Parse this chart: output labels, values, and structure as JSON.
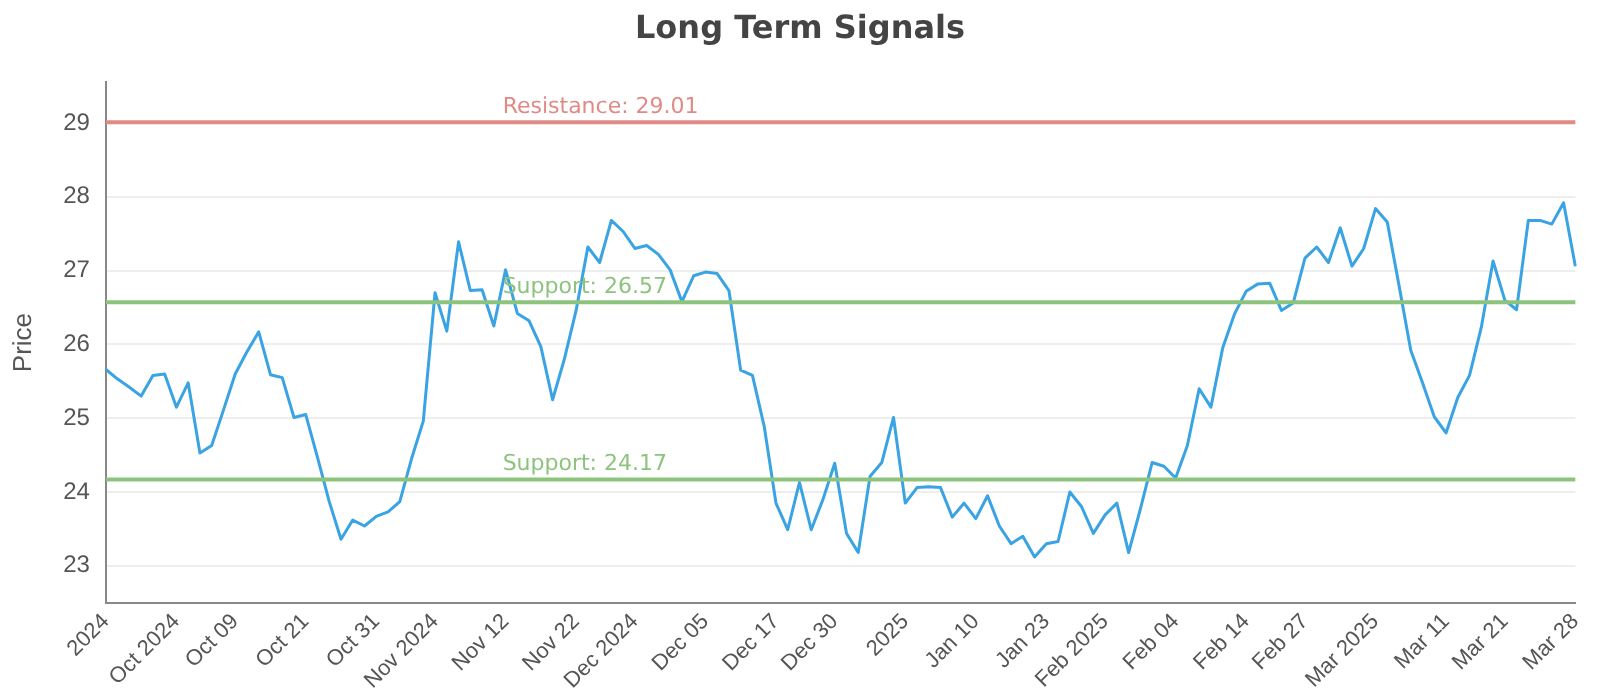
{
  "chart_data": {
    "type": "line",
    "title": "Long Term Signals",
    "ylabel": "Price",
    "categories": [
      "2024",
      null,
      null,
      null,
      null,
      null,
      "Oct 2024",
      null,
      null,
      null,
      null,
      "Oct 09",
      null,
      null,
      null,
      null,
      null,
      "Oct 21",
      null,
      null,
      null,
      null,
      null,
      "Oct 31",
      null,
      null,
      null,
      null,
      "Nov 2024",
      null,
      null,
      null,
      null,
      null,
      "Nov 12",
      null,
      null,
      null,
      null,
      null,
      "Nov 22",
      null,
      null,
      null,
      null,
      "Dec 2024",
      null,
      null,
      null,
      null,
      null,
      "Dec 05",
      null,
      null,
      null,
      null,
      null,
      "Dec 17",
      null,
      null,
      null,
      null,
      "Dec 30",
      null,
      null,
      null,
      null,
      null,
      "2025",
      null,
      null,
      null,
      null,
      null,
      "Jan 10",
      null,
      null,
      null,
      null,
      null,
      "Jan 23",
      null,
      null,
      null,
      null,
      "Feb 2025",
      null,
      null,
      null,
      null,
      null,
      "Feb 04",
      null,
      null,
      null,
      null,
      null,
      "Feb 14",
      null,
      null,
      null,
      null,
      "Feb 27",
      null,
      null,
      null,
      null,
      null,
      "Mar 2025",
      null,
      null,
      null,
      null,
      null,
      "Mar 11",
      null,
      null,
      null,
      null,
      "Mar 21",
      null,
      null,
      null,
      null,
      null,
      "Mar 28"
    ],
    "series": [
      {
        "color": "#3aa3e3",
        "values": [
          25.66,
          25.53,
          25.42,
          25.3,
          25.58,
          25.6,
          25.15,
          25.48,
          24.53,
          24.63,
          25.11,
          25.6,
          25.9,
          26.17,
          25.59,
          25.55,
          25.01,
          25.05,
          24.47,
          23.87,
          23.36,
          23.62,
          23.54,
          23.67,
          23.73,
          23.87,
          24.45,
          24.96,
          26.7,
          26.18,
          27.39,
          26.73,
          26.74,
          26.25,
          27.01,
          26.42,
          26.32,
          25.97,
          25.25,
          25.8,
          26.46,
          27.32,
          27.11,
          27.68,
          27.53,
          27.3,
          27.34,
          27.22,
          27.01,
          26.58,
          26.93,
          26.98,
          26.96,
          26.73,
          25.65,
          25.58,
          24.89,
          23.85,
          23.49,
          24.13,
          23.49,
          23.9,
          24.39,
          23.44,
          23.18,
          24.21,
          24.4,
          25.01,
          23.85,
          24.06,
          24.07,
          24.06,
          23.66,
          23.85,
          23.64,
          23.95,
          23.54,
          23.3,
          23.4,
          23.12,
          23.3,
          23.33,
          24.0,
          23.8,
          23.44,
          23.69,
          23.85,
          23.18,
          23.77,
          24.4,
          24.35,
          24.19,
          24.63,
          25.4,
          25.15,
          25.95,
          26.41,
          26.72,
          26.82,
          26.83,
          26.46,
          26.56,
          27.17,
          27.32,
          27.11,
          27.58,
          27.06,
          27.3,
          27.84,
          27.66,
          26.8,
          25.92,
          25.48,
          25.02,
          24.8,
          25.28,
          25.58,
          26.23,
          27.13,
          26.6,
          26.47,
          27.68,
          27.68,
          27.63,
          27.92,
          27.06
        ]
      }
    ],
    "ylim": [
      22.5,
      29.55
    ],
    "yticks": [
      23,
      24,
      25,
      26,
      27,
      28,
      29
    ],
    "grid": "y",
    "marker": "none",
    "line_style": "solid",
    "ref_lines": [
      {
        "axis": "y",
        "value": 29.01,
        "label": "Resistance: 29.01",
        "color": "#e08a86"
      },
      {
        "axis": "y",
        "value": 26.57,
        "label": "Support: 26.57",
        "color": "#8cc47e"
      },
      {
        "axis": "y",
        "value": 24.17,
        "label": "Support: 24.17",
        "color": "#8cc47e"
      }
    ]
  }
}
